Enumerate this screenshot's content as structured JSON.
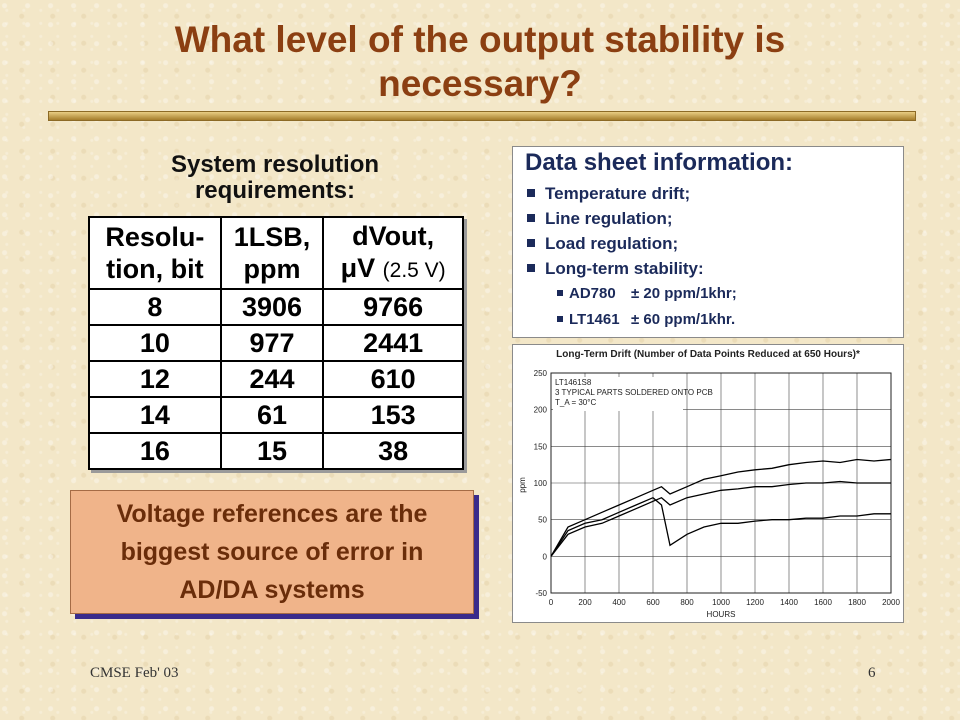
{
  "slide": {
    "title_line1": "What level of the output stability is",
    "title_line2": "necessary?",
    "accent_color": "#8b3f12"
  },
  "resolution": {
    "heading_line1": "System resolution",
    "heading_line2": "requirements:",
    "header": [
      [
        "Resolu-",
        "tion, bit"
      ],
      [
        "1LSB,",
        "ppm"
      ],
      [
        "dVout,",
        "μV",
        "(2.5 V)"
      ]
    ],
    "rows": [
      [
        "8",
        "3906",
        "9766"
      ],
      [
        "10",
        "977",
        "2441"
      ],
      [
        "12",
        "244",
        "610"
      ],
      [
        "14",
        "61",
        "153"
      ],
      [
        "16",
        "15",
        "38"
      ]
    ]
  },
  "callout": {
    "line1": "Voltage references are the",
    "line2": "biggest source of error in",
    "line3": "AD/DA systems"
  },
  "datasheet": {
    "heading": "Data sheet information:",
    "items": [
      "Temperature drift;",
      "Line regulation;",
      "Load regulation;",
      "Long-term stability:"
    ],
    "subitems": [
      {
        "part": "AD780",
        "spec": "± 20 ppm/1khr;"
      },
      {
        "part": "LT1461",
        "spec": "± 60 ppm/1khr."
      }
    ]
  },
  "chart_data": {
    "type": "line",
    "title": "Long-Term Drift (Number of Data Points Reduced at 650 Hours)*",
    "annotation": [
      "LT1461S8",
      "3 TYPICAL PARTS SOLDERED ONTO PCB",
      "T_A = 30°C"
    ],
    "xlabel": "HOURS",
    "ylabel": "ppm",
    "xlim": [
      0,
      2000
    ],
    "ylim": [
      -50,
      250
    ],
    "xticks": [
      0,
      200,
      400,
      600,
      800,
      1000,
      1200,
      1400,
      1600,
      1800,
      2000
    ],
    "yticks": [
      -50,
      0,
      50,
      100,
      150,
      200,
      250
    ],
    "grid": true,
    "series": [
      {
        "x": [
          0,
          100,
          200,
          300,
          400,
          500,
          600,
          650,
          700,
          800,
          900,
          1000,
          1100,
          1200,
          1300,
          1400,
          1500,
          1600,
          1700,
          1800,
          1900,
          2000
        ],
        "y": [
          0,
          40,
          50,
          60,
          70,
          80,
          90,
          95,
          85,
          95,
          105,
          110,
          115,
          118,
          120,
          125,
          128,
          130,
          128,
          132,
          130,
          132
        ]
      },
      {
        "x": [
          0,
          100,
          200,
          300,
          400,
          500,
          600,
          650,
          700,
          800,
          900,
          1000,
          1100,
          1200,
          1300,
          1400,
          1500,
          1600,
          1700,
          1800,
          1900,
          2000
        ],
        "y": [
          0,
          30,
          40,
          45,
          55,
          65,
          75,
          80,
          70,
          80,
          85,
          90,
          92,
          95,
          95,
          98,
          100,
          100,
          102,
          100,
          100,
          100
        ]
      },
      {
        "x": [
          0,
          100,
          200,
          300,
          400,
          500,
          600,
          650,
          700,
          800,
          900,
          1000,
          1100,
          1200,
          1300,
          1400,
          1500,
          1600,
          1700,
          1800,
          1900,
          2000
        ],
        "y": [
          0,
          35,
          45,
          50,
          60,
          70,
          80,
          70,
          15,
          30,
          40,
          45,
          45,
          48,
          50,
          50,
          52,
          52,
          55,
          55,
          58,
          58
        ]
      }
    ]
  },
  "footer": {
    "left": "CMSE Feb' 03",
    "right": "6"
  }
}
